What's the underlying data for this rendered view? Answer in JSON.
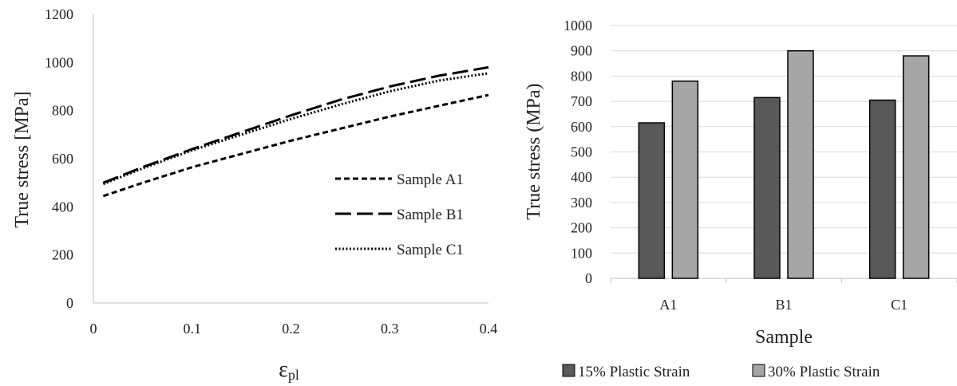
{
  "chart_data": [
    {
      "type": "line",
      "xlabel": "ε",
      "xlabel_sub": "pl",
      "ylabel": "True stress [MPa]",
      "xlim": [
        0,
        0.4
      ],
      "ylim": [
        0,
        1200
      ],
      "xticks": [
        "0",
        "0.1",
        "0.2",
        "0.3",
        "0.4"
      ],
      "yticks": [
        "0",
        "200",
        "400",
        "600",
        "800",
        "1000",
        "1200"
      ],
      "legend_position": "right",
      "grid": false,
      "series": [
        {
          "name": "Sample A1",
          "style": "dashed",
          "x": [
            0.01,
            0.05,
            0.1,
            0.15,
            0.2,
            0.25,
            0.3,
            0.35,
            0.4
          ],
          "y": [
            445,
            500,
            565,
            620,
            675,
            725,
            775,
            820,
            865
          ]
        },
        {
          "name": "Sample B1",
          "style": "long-dash",
          "x": [
            0.01,
            0.05,
            0.1,
            0.15,
            0.2,
            0.25,
            0.3,
            0.35,
            0.4
          ],
          "y": [
            500,
            565,
            640,
            710,
            780,
            845,
            900,
            945,
            980
          ]
        },
        {
          "name": "Sample C1",
          "style": "dotted",
          "x": [
            0.01,
            0.05,
            0.1,
            0.15,
            0.2,
            0.25,
            0.3,
            0.35,
            0.4
          ],
          "y": [
            495,
            560,
            635,
            700,
            765,
            825,
            880,
            925,
            955
          ]
        }
      ]
    },
    {
      "type": "bar",
      "xlabel": "Sample",
      "ylabel": "True stress (MPa)",
      "categories": [
        "A1",
        "B1",
        "C1"
      ],
      "ylim": [
        0,
        1000
      ],
      "yticks": [
        "0",
        "100",
        "200",
        "300",
        "400",
        "500",
        "600",
        "700",
        "800",
        "900",
        "1000"
      ],
      "grid": true,
      "legend_position": "bottom",
      "series": [
        {
          "name": "15% Plastic Strain",
          "color": "#595959",
          "values": [
            615,
            715,
            705
          ]
        },
        {
          "name": "30% Plastic Strain",
          "color": "#a6a6a6",
          "values": [
            780,
            900,
            880
          ]
        }
      ]
    }
  ]
}
